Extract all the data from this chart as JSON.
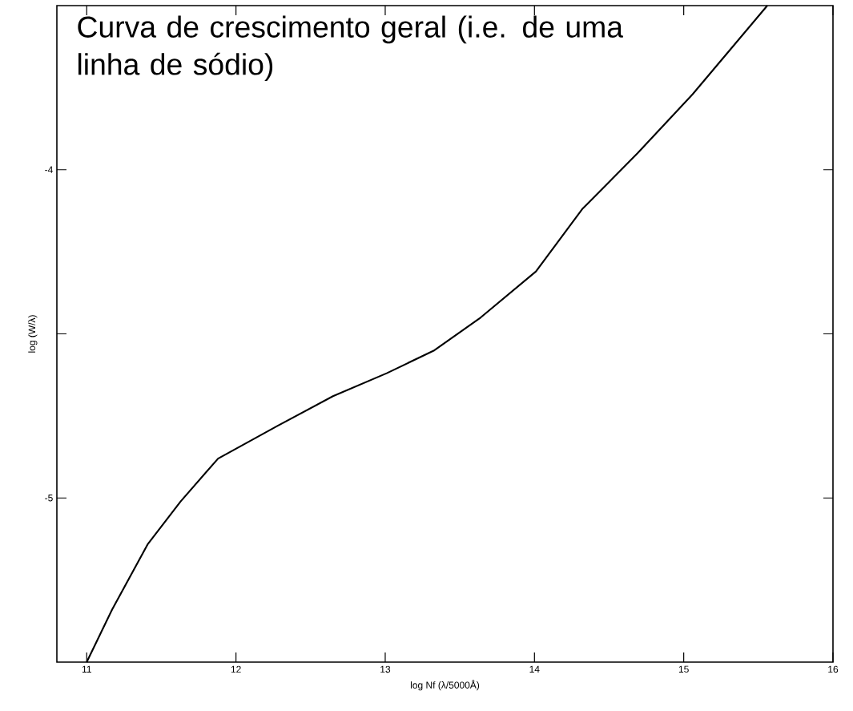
{
  "chart_data": {
    "type": "line",
    "xlabel": "log Nf (λ/5000Å)",
    "ylabel": "log (W/λ)",
    "annotations": [
      "Curva de crescimento geral (i.e. de uma linha de sódio)"
    ],
    "xlim": [
      10.8,
      16
    ],
    "ylim": [
      -5.5,
      -3.5
    ],
    "xticks": [
      11,
      12,
      13,
      14,
      15,
      16
    ],
    "yticks": [
      -5,
      {
        "value": -4.5,
        "label": null
      },
      -4
    ],
    "series": [
      {
        "color": "#000000",
        "line_style": "solid",
        "x": [
          11.0,
          11.17,
          11.41,
          11.63,
          11.88,
          12.28,
          12.65,
          13.01,
          13.33,
          13.64,
          14.01,
          14.32,
          14.69,
          15.06,
          15.56
        ],
        "values": [
          -5.5,
          -5.34,
          -5.14,
          -5.01,
          -4.88,
          -4.78,
          -4.69,
          -4.62,
          -4.55,
          -4.45,
          -4.31,
          -4.12,
          -3.95,
          -3.77,
          -3.5
        ]
      }
    ]
  }
}
